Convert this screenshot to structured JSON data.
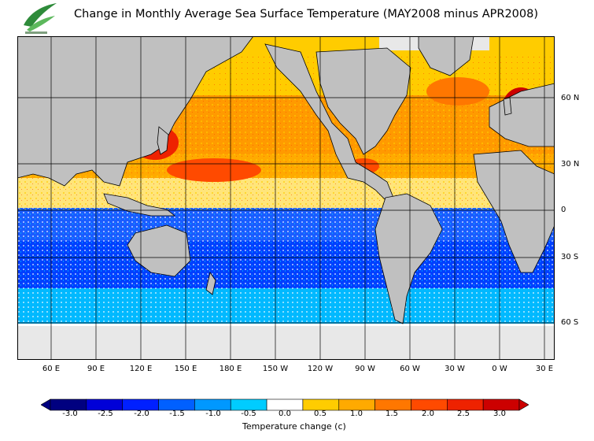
{
  "header": {
    "title": "Change in Monthly Average Sea Surface Temperature (MAY2008 minus APR2008)"
  },
  "map": {
    "lat_labels": [
      "60 N",
      "30 N",
      "0",
      "30 S",
      "60 S"
    ],
    "lon_labels": [
      "60 E",
      "90 E",
      "120 E",
      "150 E",
      "180 E",
      "150 W",
      "120 W",
      "90 W",
      "60 W",
      "30 W",
      "0 W",
      "30 E"
    ]
  },
  "colorbar": {
    "title": "Temperature change  (c)",
    "tick_labels": [
      "-3.0",
      "-2.5",
      "-2.0",
      "-1.5",
      "-1.0",
      "-0.5",
      "0.0",
      "0.5",
      "1.0",
      "1.5",
      "2.0",
      "2.5",
      "3.0"
    ],
    "colors": [
      "#000080",
      "#0000d8",
      "#0020ff",
      "#0060ff",
      "#0098ff",
      "#00ccff",
      "#ffffff",
      "#ffcc00",
      "#ffaa00",
      "#ff7700",
      "#ff4a00",
      "#ee2200",
      "#cc0000"
    ]
  },
  "colors": {
    "land": "#c0c0c0",
    "no_data": "#e8e8e8",
    "warm": "#ff9a00",
    "cold": "#1a5cff"
  }
}
